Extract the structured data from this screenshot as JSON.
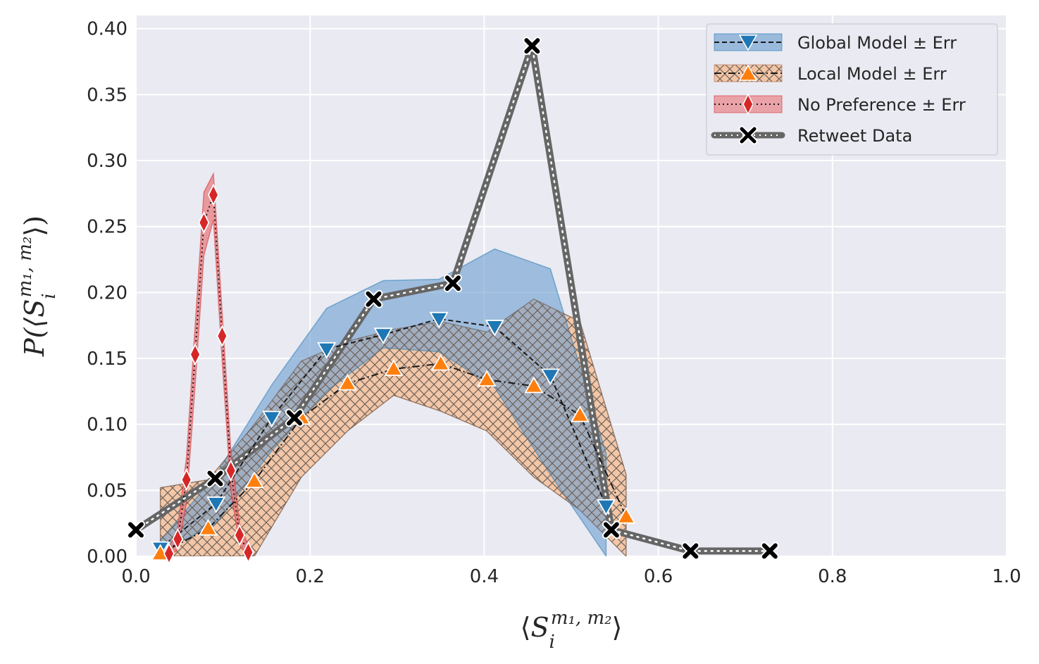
{
  "chart_data": {
    "type": "line",
    "title": "",
    "xlabel": "⟨S_i^{m1,m2}⟩",
    "ylabel": "P(⟨S_i^{m1,m2}⟩)",
    "xlabel_parts": {
      "open": "⟨",
      "base": "S",
      "sub": "i",
      "sup": "m₁, m₂",
      "close": "⟩"
    },
    "ylabel_parts": {
      "prefix": "P(⟨",
      "base": "S",
      "sub": "i",
      "sup": "m₁, m₂",
      "close": "⟩)"
    },
    "xlim": [
      0.0,
      1.0
    ],
    "ylim": [
      0.0,
      0.41
    ],
    "xticks": [
      0.0,
      0.2,
      0.4,
      0.6,
      0.8,
      1.0
    ],
    "xtick_labels": [
      "0.0",
      "0.2",
      "0.4",
      "0.6",
      "0.8",
      "1.0"
    ],
    "yticks": [
      0.0,
      0.05,
      0.1,
      0.15,
      0.2,
      0.25,
      0.3,
      0.35,
      0.4
    ],
    "ytick_labels": [
      "0.00",
      "0.05",
      "0.10",
      "0.15",
      "0.20",
      "0.25",
      "0.30",
      "0.35",
      "0.40"
    ],
    "grid": true,
    "legend_position": "top-right",
    "series": [
      {
        "name": "Global Model ± Err",
        "color": "#1f77b4",
        "band_color": "#6f9fd0",
        "line_style": "dashed",
        "marker": "triangle-down",
        "x": [
          0.028,
          0.092,
          0.156,
          0.219,
          0.284,
          0.348,
          0.412,
          0.476,
          0.54
        ],
        "y": [
          0.006,
          0.04,
          0.105,
          0.157,
          0.168,
          0.18,
          0.174,
          0.137,
          0.038
        ],
        "lower": [
          0.003,
          0.025,
          0.08,
          0.125,
          0.158,
          0.155,
          0.128,
          0.062,
          0.0
        ],
        "upper": [
          0.012,
          0.062,
          0.13,
          0.188,
          0.209,
          0.21,
          0.233,
          0.218,
          0.078
        ]
      },
      {
        "name": "Local Model ± Err",
        "color": "#ff7f0e",
        "band_color": "#f5b889",
        "line_style": "dashdot",
        "marker": "triangle-up",
        "x": [
          0.028,
          0.083,
          0.136,
          0.19,
          0.243,
          0.296,
          0.35,
          0.403,
          0.457,
          0.51,
          0.563
        ],
        "y": [
          0.002,
          0.021,
          0.057,
          0.105,
          0.131,
          0.142,
          0.146,
          0.134,
          0.129,
          0.107,
          0.03
        ],
        "lower": [
          0.0,
          0.0,
          0.0,
          0.06,
          0.095,
          0.122,
          0.11,
          0.095,
          0.06,
          0.035,
          0.0
        ],
        "upper": [
          0.052,
          0.058,
          0.1,
          0.148,
          0.163,
          0.172,
          0.178,
          0.17,
          0.195,
          0.178,
          0.062
        ]
      },
      {
        "name": "No Preference ± Err",
        "color": "#d62728",
        "band_color": "#e87c80",
        "line_style": "dotted",
        "marker": "thin-diamond",
        "x": [
          0.038,
          0.048,
          0.058,
          0.068,
          0.078,
          0.089,
          0.099,
          0.109,
          0.119,
          0.129
        ],
        "y": [
          0.002,
          0.013,
          0.058,
          0.153,
          0.253,
          0.274,
          0.167,
          0.065,
          0.016,
          0.003
        ],
        "lower": [
          0.0,
          0.005,
          0.04,
          0.13,
          0.228,
          0.255,
          0.148,
          0.05,
          0.008,
          0.0
        ],
        "upper": [
          0.006,
          0.022,
          0.075,
          0.175,
          0.276,
          0.29,
          0.185,
          0.08,
          0.025,
          0.008
        ]
      },
      {
        "name": "Retweet Data",
        "color": "#000000",
        "line_color": "#666666",
        "line_style": "dotted-thick",
        "marker": "x",
        "x": [
          0.0,
          0.091,
          0.182,
          0.273,
          0.364,
          0.455,
          0.546,
          0.637,
          0.728
        ],
        "y": [
          0.02,
          0.059,
          0.105,
          0.195,
          0.207,
          0.387,
          0.02,
          0.004,
          0.004
        ]
      }
    ]
  }
}
